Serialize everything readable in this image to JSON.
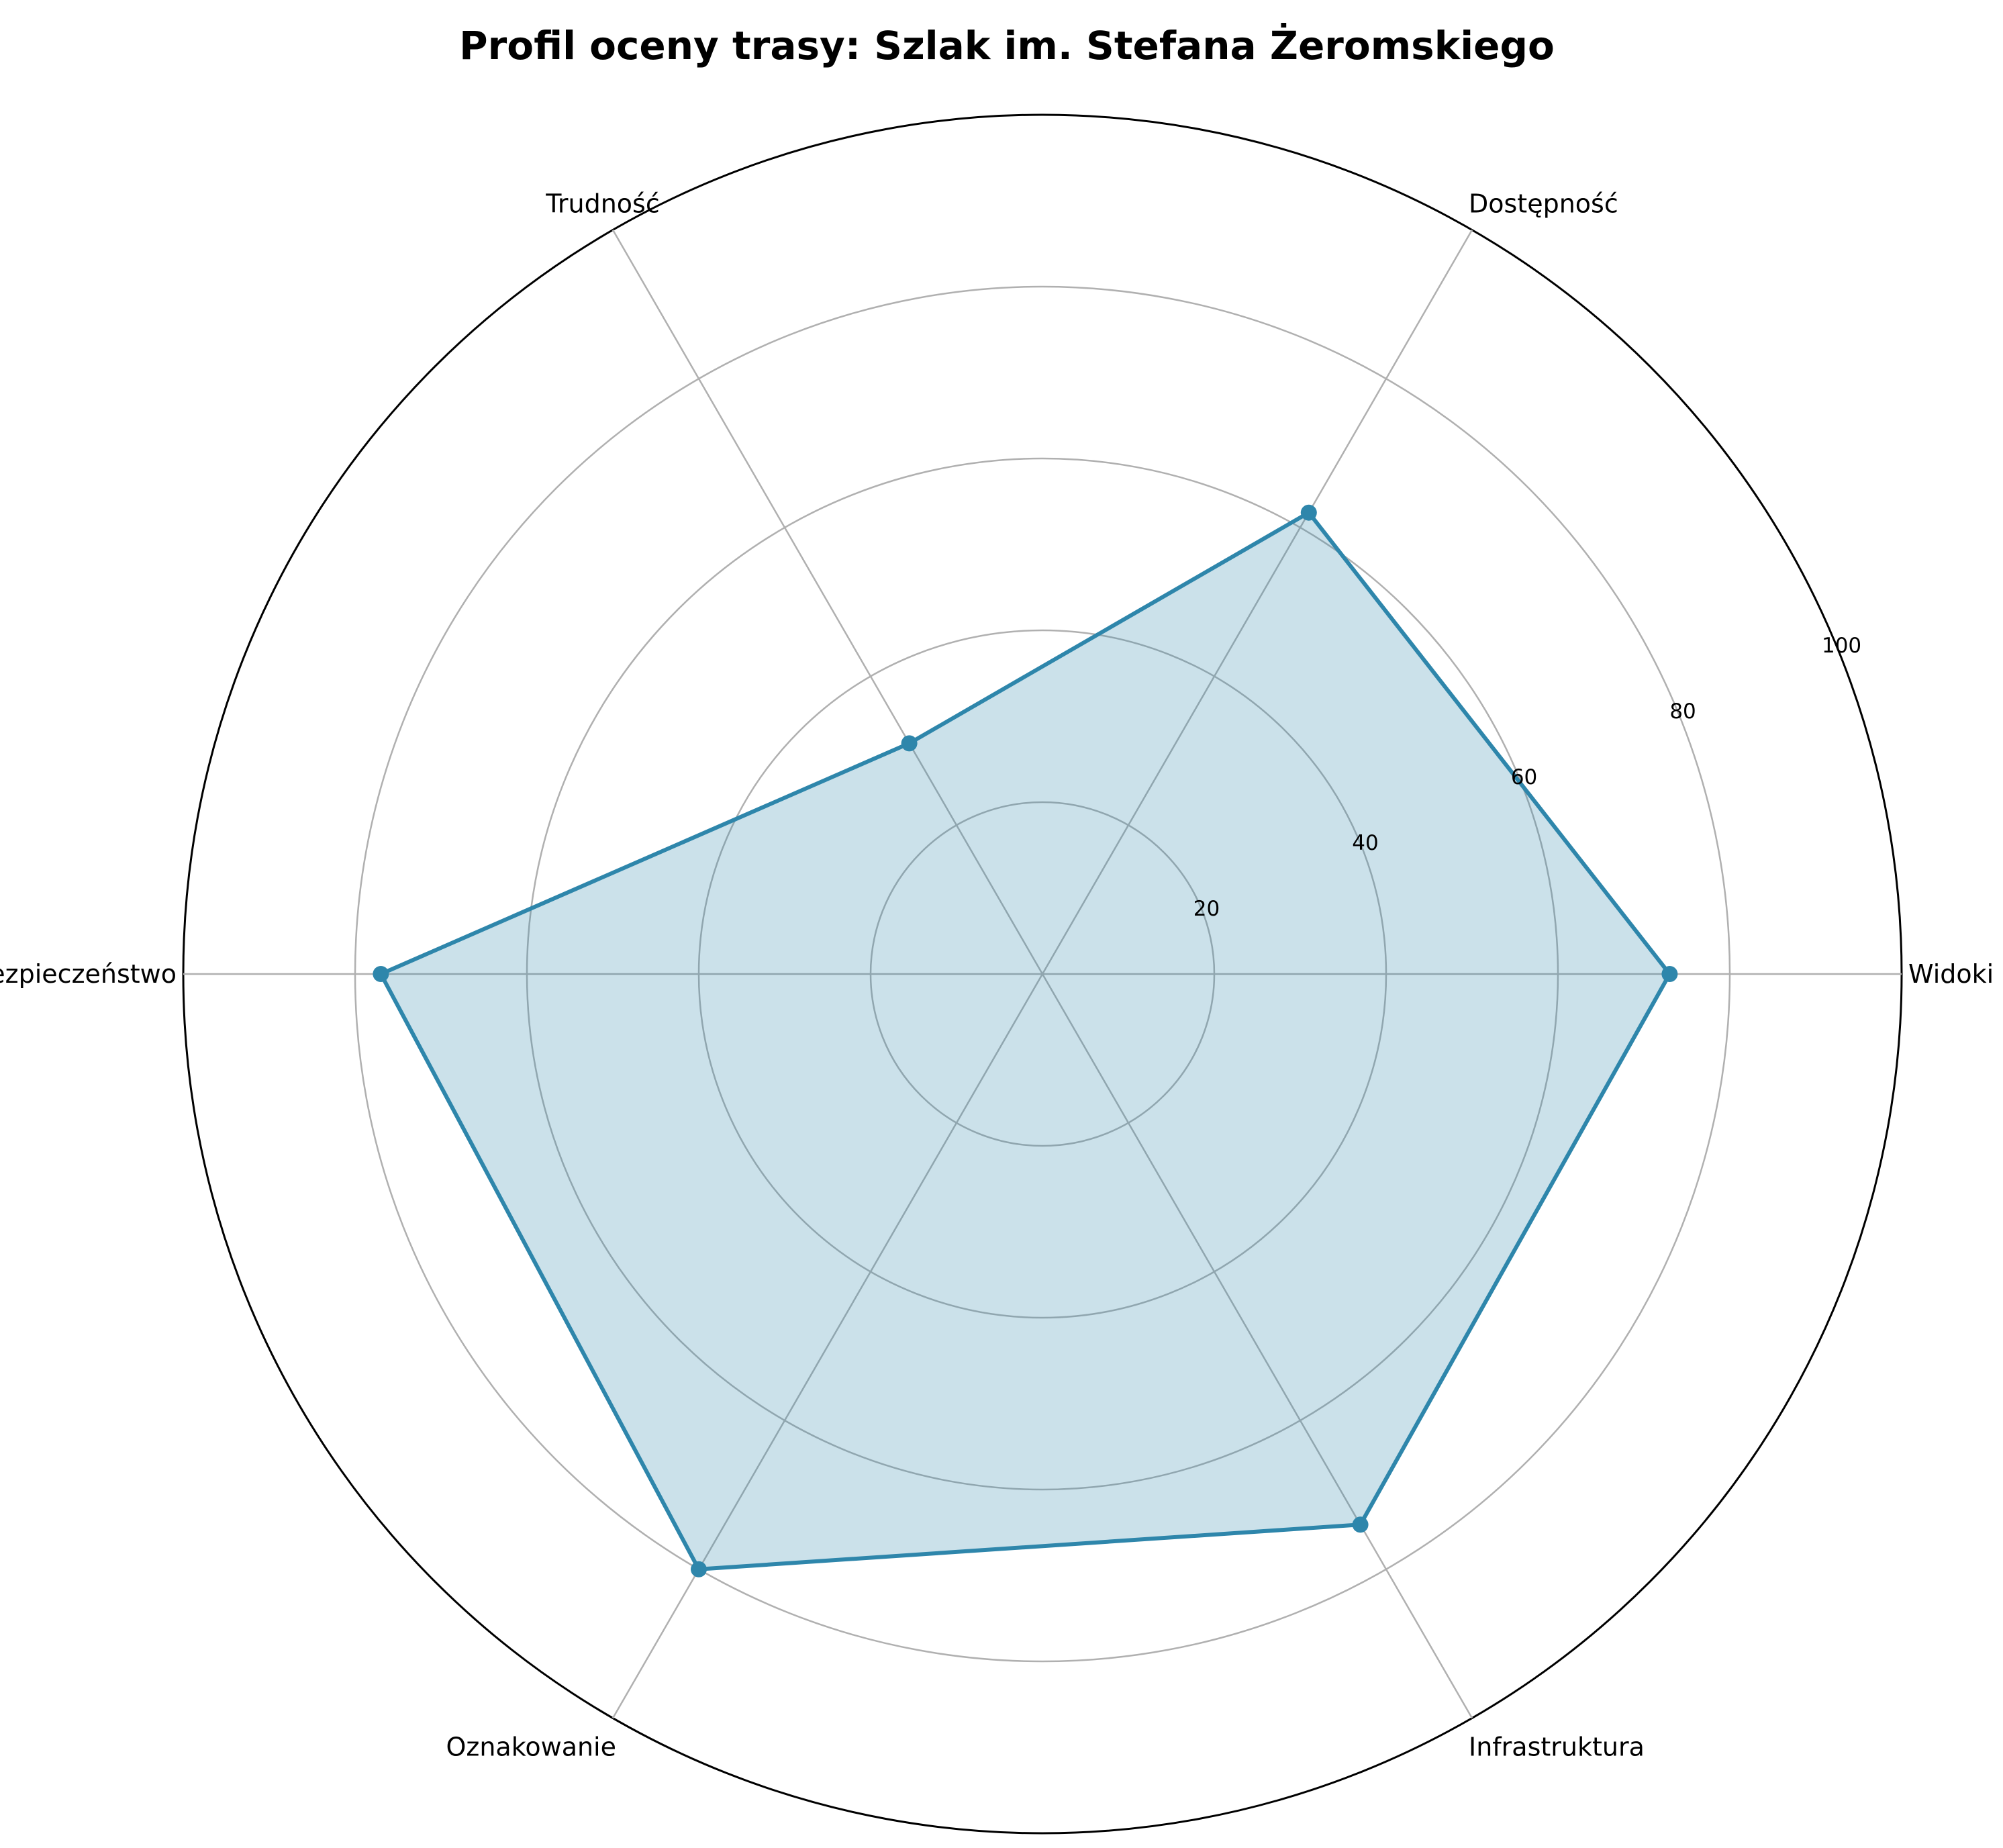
{
  "chart_data": {
    "type": "radar",
    "title": "Profil oceny trasy: Szlak im. Stefana Żeromskiego",
    "categories": [
      "Widoki",
      "Dostępność",
      "Trudność",
      "Bezpieczeństwo",
      "Oznakowanie",
      "Infrastruktura"
    ],
    "series": [
      {
        "values": [
          73,
          62,
          31,
          77,
          80,
          74
        ]
      }
    ],
    "rlim": [
      0,
      100
    ],
    "r_ticks": [
      20,
      40,
      60,
      80,
      100
    ],
    "grid": true,
    "colors": {
      "line": "#2e86ab",
      "fill": "#2e86ab",
      "grid": "#b0b0b0",
      "outer": "#000000"
    }
  }
}
